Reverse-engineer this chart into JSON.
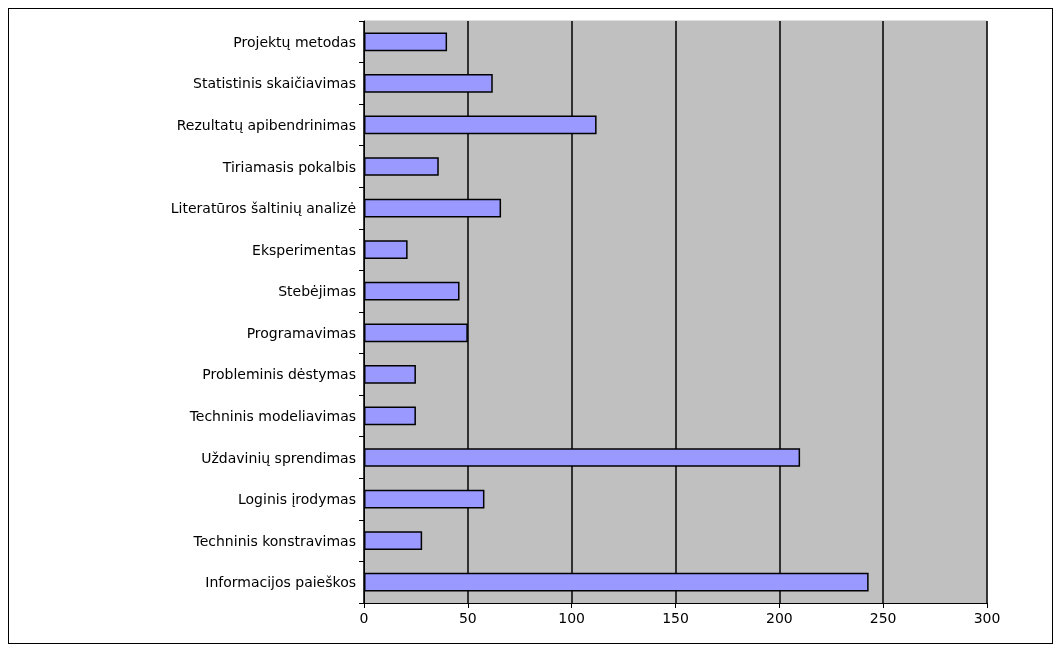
{
  "chart_data": {
    "type": "bar",
    "orientation": "horizontal",
    "categories": [
      "Projektų metodas",
      "Statistinis skaičiavimas",
      "Rezultatų apibendrinimas",
      "Tiriamasis pokalbis",
      "Literatūros šaltinių analizė",
      "Eksperimentas",
      "Stebėjimas",
      "Programavimas",
      "Probleminis dėstymas",
      "Techninis modeliavimas",
      "Uždavinių sprendimas",
      "Loginis įrodymas",
      "Techninis konstravimas",
      "Informacijos paieškos"
    ],
    "values": [
      40,
      62,
      112,
      36,
      66,
      21,
      46,
      50,
      25,
      25,
      210,
      58,
      28,
      243
    ],
    "color": "#9999ff",
    "xlim": [
      0,
      300
    ],
    "xticks": [
      0,
      50,
      100,
      150,
      200,
      250,
      300
    ],
    "grid": "x"
  }
}
